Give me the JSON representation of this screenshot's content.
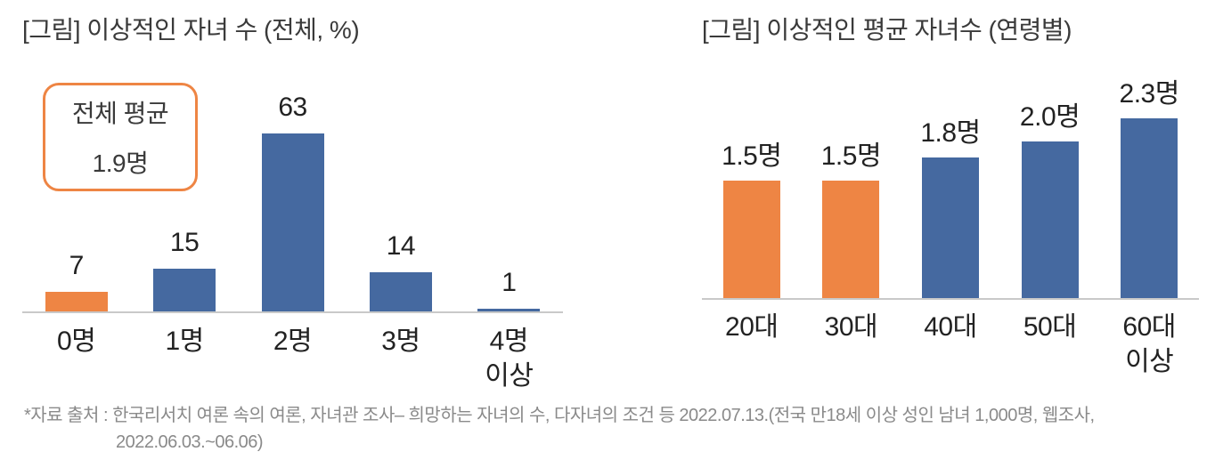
{
  "chart_data": [
    {
      "type": "bar",
      "title": "[그림] 이상적인 자녀 수 (전체, %)",
      "categories": [
        "0명",
        "1명",
        "2명",
        "3명",
        "4명\n이상"
      ],
      "values": [
        7,
        15,
        63,
        14,
        1
      ],
      "data_labels": [
        "7",
        "15",
        "63",
        "14",
        "1"
      ],
      "bar_colors": [
        "#ee8544",
        "#4569a0",
        "#4569a0",
        "#4569a0",
        "#4569a0"
      ],
      "annotation": {
        "line1": "전체 평균",
        "line2": "1.9명"
      },
      "unit": "%",
      "xlabel": "",
      "ylabel": "",
      "ylim": [
        0,
        70
      ],
      "grid": false,
      "legend": false,
      "axis_color": "#c9c9c9"
    },
    {
      "type": "bar",
      "title": "[그림] 이상적인 평균 자녀수 (연령별)",
      "categories": [
        "20대",
        "30대",
        "40대",
        "50대",
        "60대\n이상"
      ],
      "values": [
        1.5,
        1.5,
        1.8,
        2.0,
        2.3
      ],
      "data_labels": [
        "1.5명",
        "1.5명",
        "1.8명",
        "2.0명",
        "2.3명"
      ],
      "bar_colors": [
        "#ee8544",
        "#ee8544",
        "#4569a0",
        "#4569a0",
        "#4569a0"
      ],
      "unit": "명",
      "xlabel": "",
      "ylabel": "",
      "ylim": [
        0,
        2.6
      ],
      "grid": false,
      "legend": false,
      "axis_color": "#c9c9c9"
    }
  ],
  "footer": {
    "line1": "*자료 출처 : 한국리서치 여론 속의 여론, 자녀관 조사– 희망하는 자녀의 수, 다자녀의 조건 등 2022.07.13.(전국 만18세 이상 성인 남녀 1,000명, 웹조사,",
    "line2": "2022.06.03.~06.06)"
  },
  "colors": {
    "orange": "#ee8544",
    "blue": "#4569a0",
    "axis": "#c9c9c9",
    "title_text": "#3a3a3a",
    "label_text": "#222222",
    "footer_text": "#8a8a8a",
    "background": "#ffffff"
  }
}
